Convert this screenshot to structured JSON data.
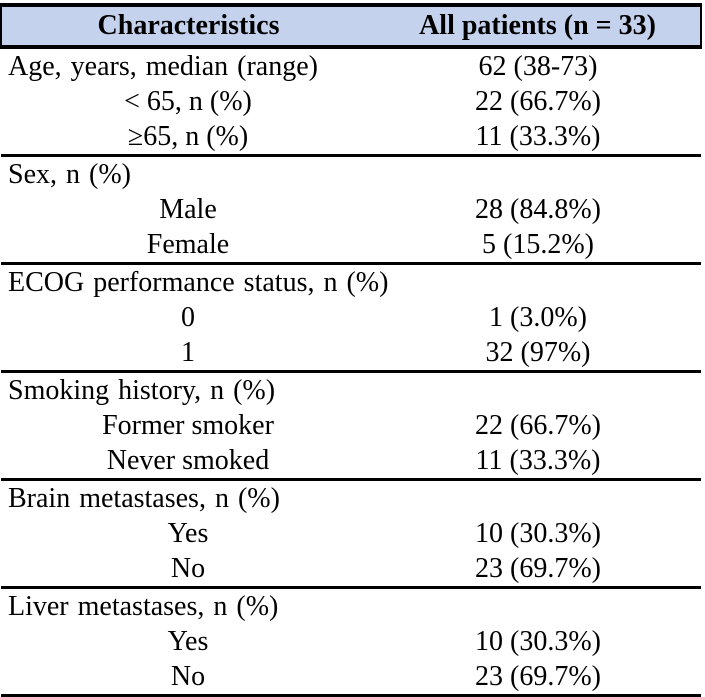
{
  "table": {
    "header": {
      "col1": "Characteristics",
      "col2": "All patients (n = 33)"
    },
    "sections": [
      {
        "rows": [
          {
            "label": "Age, years, median (range)",
            "value": "62 (38-73)",
            "indent": false
          },
          {
            "label": "< 65, n (%)",
            "value": "22 (66.7%)",
            "indent": true
          },
          {
            "label": "≥65, n (%)",
            "value": "11 (33.3%)",
            "indent": true
          }
        ]
      },
      {
        "rows": [
          {
            "label": "Sex, n (%)",
            "value": "",
            "indent": false
          },
          {
            "label": "Male",
            "value": "28 (84.8%)",
            "indent": true
          },
          {
            "label": "Female",
            "value": "5 (15.2%)",
            "indent": true
          }
        ]
      },
      {
        "rows": [
          {
            "label": "ECOG performance status, n (%)",
            "value": "",
            "indent": false
          },
          {
            "label": "0",
            "value": "1 (3.0%)",
            "indent": true
          },
          {
            "label": "1",
            "value": "32 (97%)",
            "indent": true
          }
        ]
      },
      {
        "rows": [
          {
            "label": "Smoking history, n (%)",
            "value": "",
            "indent": false
          },
          {
            "label": "Former smoker",
            "value": "22 (66.7%)",
            "indent": true
          },
          {
            "label": "Never smoked",
            "value": "11 (33.3%)",
            "indent": true
          }
        ]
      },
      {
        "rows": [
          {
            "label": "Brain metastases, n (%)",
            "value": "",
            "indent": false
          },
          {
            "label": "Yes",
            "value": "10 (30.3%)",
            "indent": true
          },
          {
            "label": "No",
            "value": "23 (69.7%)",
            "indent": true
          }
        ]
      },
      {
        "rows": [
          {
            "label": "Liver metastases, n (%)",
            "value": "",
            "indent": false
          },
          {
            "label": "Yes",
            "value": "10 (30.3%)",
            "indent": true
          },
          {
            "label": "No",
            "value": "23 (69.7%)",
            "indent": true
          }
        ]
      }
    ],
    "colors": {
      "header_bg": "#c5d2ee",
      "border": "#000000",
      "text": "#000000"
    }
  }
}
